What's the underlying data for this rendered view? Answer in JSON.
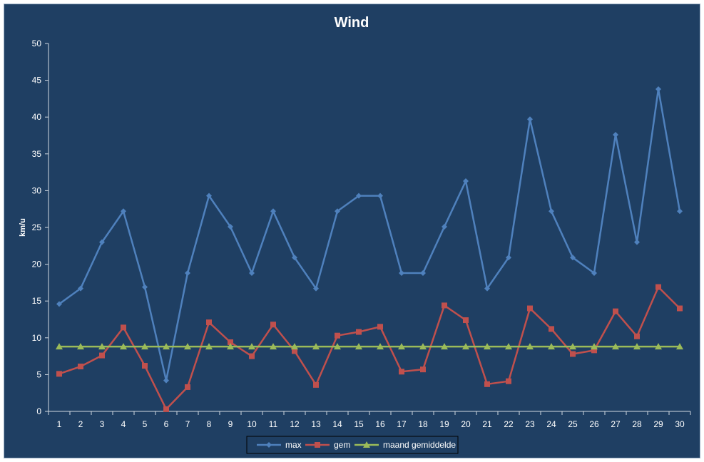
{
  "chart_data": {
    "type": "line",
    "title": "Wind",
    "xlabel": "",
    "ylabel": "km/u",
    "ylim": [
      0,
      50
    ],
    "ytick_step": 5,
    "grid": false,
    "legend_position": "bottom",
    "x": [
      1,
      2,
      3,
      4,
      5,
      6,
      7,
      8,
      9,
      10,
      11,
      12,
      13,
      14,
      15,
      16,
      17,
      18,
      19,
      20,
      21,
      22,
      23,
      24,
      25,
      26,
      27,
      28,
      29,
      30
    ],
    "series": [
      {
        "name": "max",
        "color": "#4f81bd",
        "marker": "diamond",
        "values": [
          14.6,
          16.7,
          23.0,
          27.2,
          16.9,
          4.2,
          18.8,
          29.3,
          25.1,
          18.8,
          27.2,
          20.9,
          16.7,
          27.2,
          29.3,
          29.3,
          18.8,
          18.8,
          25.1,
          31.3,
          16.7,
          20.9,
          39.7,
          27.2,
          20.9,
          18.8,
          37.6,
          23.0,
          43.8,
          27.2
        ]
      },
      {
        "name": "gem",
        "color": "#c0504d",
        "marker": "square",
        "values": [
          5.1,
          6.1,
          7.6,
          11.4,
          6.2,
          0.3,
          3.3,
          12.1,
          9.4,
          7.5,
          11.8,
          8.2,
          3.6,
          10.3,
          10.8,
          11.5,
          5.4,
          5.7,
          14.4,
          12.4,
          3.7,
          4.1,
          14.0,
          11.2,
          7.8,
          8.3,
          13.6,
          10.2,
          16.9,
          14.0
        ]
      },
      {
        "name": "maand gemiddelde",
        "color": "#9bbb59",
        "marker": "triangle",
        "values": [
          8.8,
          8.8,
          8.8,
          8.8,
          8.8,
          8.8,
          8.8,
          8.8,
          8.8,
          8.8,
          8.8,
          8.8,
          8.8,
          8.8,
          8.8,
          8.8,
          8.8,
          8.8,
          8.8,
          8.8,
          8.8,
          8.8,
          8.8,
          8.8,
          8.8,
          8.8,
          8.8,
          8.8,
          8.8,
          8.8
        ]
      }
    ]
  }
}
